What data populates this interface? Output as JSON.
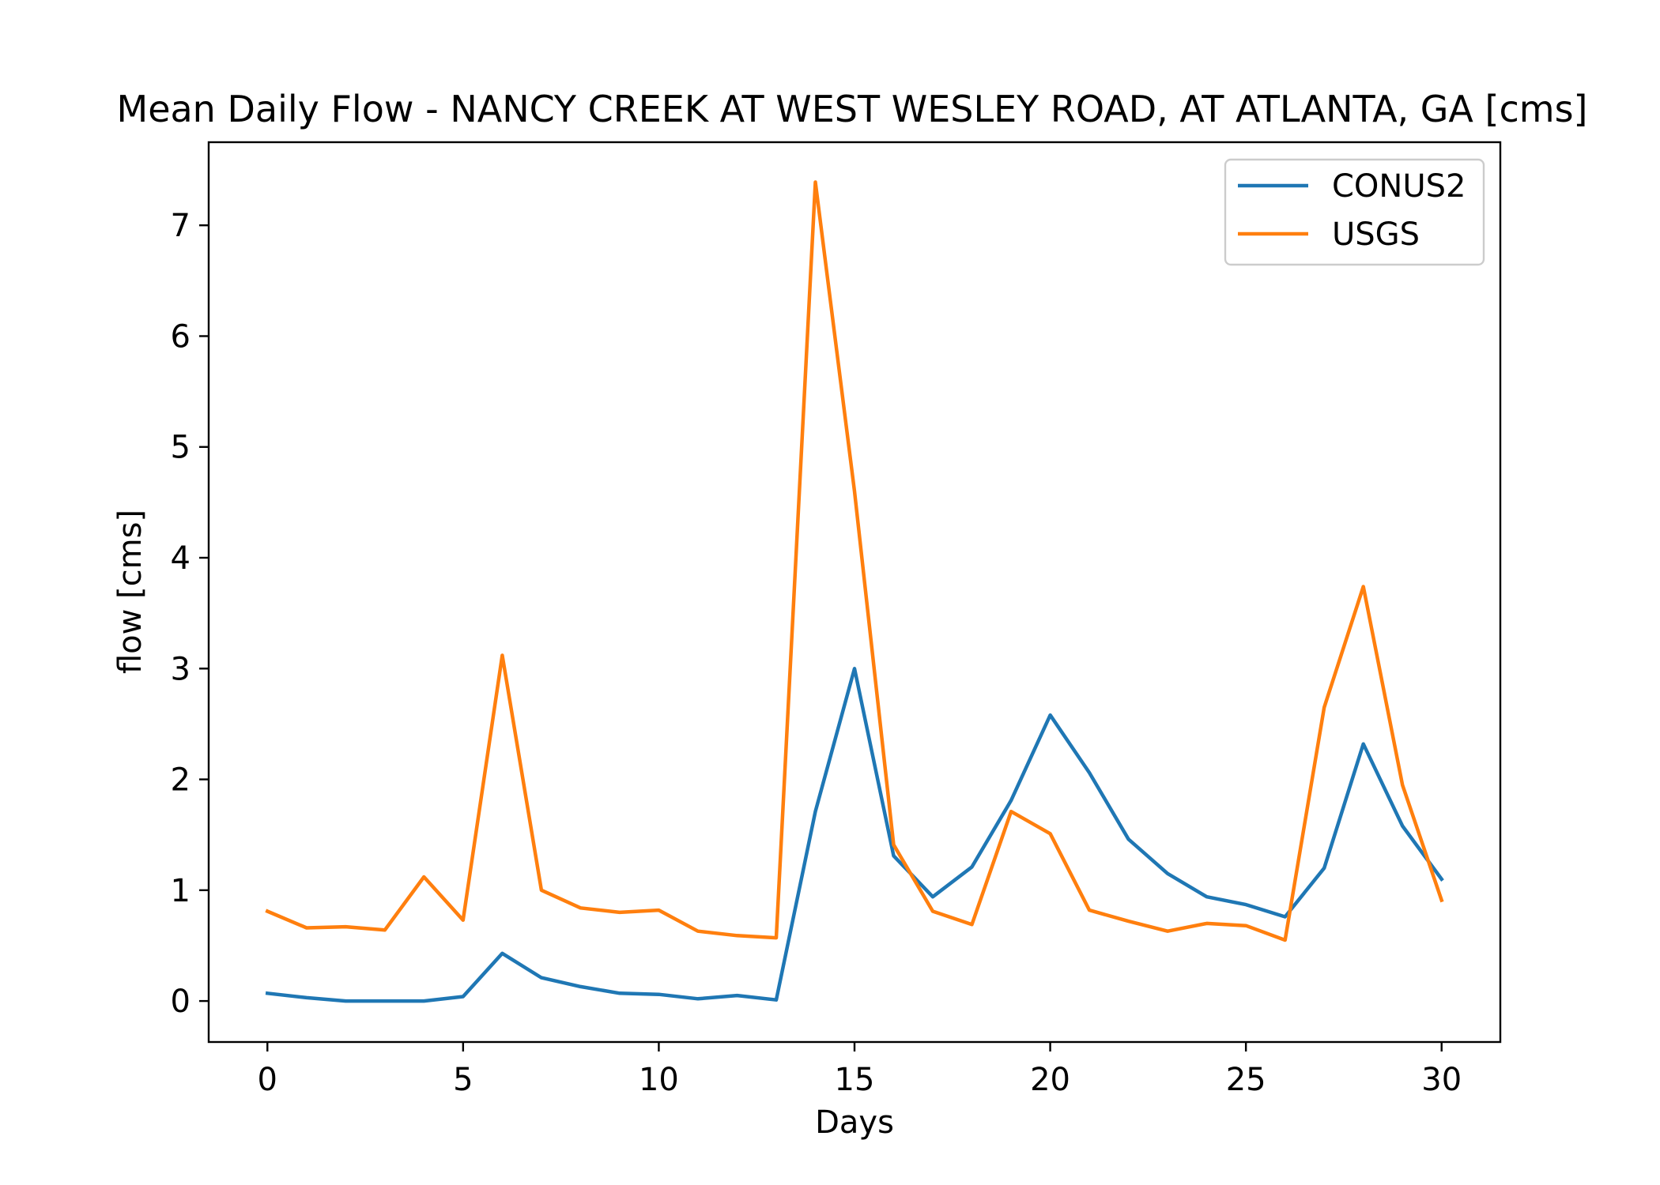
{
  "chart_data": {
    "type": "line",
    "title": "Mean Daily Flow - NANCY CREEK AT WEST WESLEY ROAD, AT ATLANTA, GA [cms]",
    "xlabel": "Days",
    "ylabel": "flow [cms]",
    "xlim": [
      -1.5,
      31.5
    ],
    "ylim": [
      -0.37,
      7.75
    ],
    "xticks": [
      0,
      5,
      10,
      15,
      20,
      25,
      30
    ],
    "yticks": [
      0,
      1,
      2,
      3,
      4,
      5,
      6,
      7
    ],
    "grid": false,
    "legend_position": "top-right",
    "x": [
      0,
      1,
      2,
      3,
      4,
      5,
      6,
      7,
      8,
      9,
      10,
      11,
      12,
      13,
      14,
      15,
      16,
      17,
      18,
      19,
      20,
      21,
      22,
      23,
      24,
      25,
      26,
      27,
      28,
      29,
      30
    ],
    "series": [
      {
        "name": "CONUS2",
        "color": "#1f77b4",
        "values": [
          0.07,
          0.03,
          0.0,
          0.0,
          0.0,
          0.04,
          0.43,
          0.21,
          0.13,
          0.07,
          0.06,
          0.02,
          0.05,
          0.01,
          1.71,
          3.0,
          1.31,
          0.94,
          1.21,
          1.81,
          2.58,
          2.06,
          1.46,
          1.15,
          0.94,
          0.87,
          0.76,
          1.2,
          2.32,
          1.58,
          1.1
        ]
      },
      {
        "name": "USGS",
        "color": "#ff7f0e",
        "values": [
          0.81,
          0.66,
          0.67,
          0.64,
          1.12,
          0.73,
          3.12,
          1.0,
          0.84,
          0.8,
          0.82,
          0.63,
          0.59,
          0.57,
          7.39,
          4.6,
          1.41,
          0.81,
          0.69,
          1.71,
          1.51,
          0.82,
          0.72,
          0.63,
          0.7,
          0.68,
          0.55,
          2.65,
          3.74,
          1.95,
          0.91
        ]
      }
    ]
  }
}
